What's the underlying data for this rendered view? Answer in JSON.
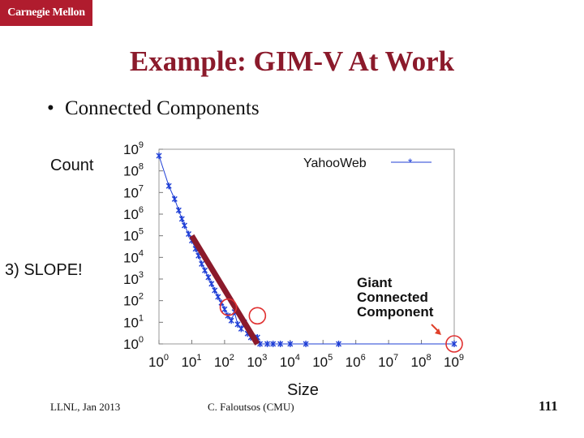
{
  "header": {
    "logo_text": "Carnegie Mellon"
  },
  "slide": {
    "title": "Example: GIM-V At Work",
    "bullet": "Connected Components",
    "count_label": "Count",
    "slope_label": "3) SLOPE!",
    "size_label": "Size"
  },
  "footer": {
    "left": "LLNL, Jan 2013",
    "center": "C. Faloutsos (CMU)",
    "page": "111"
  },
  "colors": {
    "title": "#8b1a2b",
    "logo_bg": "#b01c2e",
    "series": "#1f3fd6",
    "slope_line": "#8b1a2b",
    "circles": "#e03030"
  },
  "chart_data": {
    "type": "scatter",
    "xscale": "log",
    "yscale": "log",
    "xlim": [
      1,
      1000000000
    ],
    "ylim": [
      1,
      1000000000
    ],
    "xticks": [
      "10^0",
      "10^1",
      "10^2",
      "10^3",
      "10^4",
      "10^5",
      "10^6",
      "10^7",
      "10^8",
      "10^9"
    ],
    "yticks": [
      "10^0",
      "10^1",
      "10^2",
      "10^3",
      "10^4",
      "10^5",
      "10^6",
      "10^7",
      "10^8",
      "10^9"
    ],
    "legend": "top-right",
    "series": [
      {
        "name": "YahooWeb",
        "x": [
          1,
          2,
          3,
          4,
          5,
          6,
          8,
          10,
          13,
          16,
          20,
          25,
          32,
          40,
          50,
          63,
          80,
          100,
          126,
          160,
          200,
          250,
          320,
          400,
          500,
          630,
          800,
          1000,
          1200,
          2000,
          3000,
          5000,
          10000,
          30000,
          300000,
          1000000000
        ],
        "y": [
          500000000,
          20000000,
          5000000,
          1500000,
          600000,
          300000,
          120000,
          60000,
          25000,
          12000,
          5000,
          2500,
          1200,
          600,
          300,
          150,
          80,
          40,
          20,
          12,
          30,
          8,
          5,
          10,
          3,
          2,
          2,
          2,
          1,
          1,
          1,
          1,
          1,
          1,
          1,
          1
        ]
      }
    ],
    "annotations": [
      "Giant",
      "Connected",
      "Component"
    ],
    "slope_line": {
      "from": [
        10,
        100000
      ],
      "to": [
        1000,
        1
      ]
    },
    "highlight_points": [
      [
        130,
        50
      ],
      [
        1000,
        20
      ],
      [
        1000000000,
        1
      ]
    ]
  }
}
